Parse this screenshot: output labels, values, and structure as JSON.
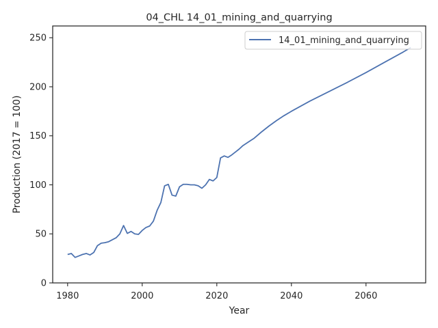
{
  "chart_data": {
    "type": "line",
    "title": "04_CHL 14_01_mining_and_quarrying",
    "xlabel": "Year",
    "ylabel": "Production (2017 = 100)",
    "xlim": [
      1976,
      2076
    ],
    "ylim": [
      0,
      262
    ],
    "xticks": [
      1980,
      2000,
      2020,
      2040,
      2060
    ],
    "yticks": [
      0,
      50,
      100,
      150,
      200,
      250
    ],
    "grid": false,
    "legend_position": "top-right",
    "series": [
      {
        "name": "14_01_mining_and_quarrying",
        "color": "#4c72b0",
        "x": [
          1980,
          1981,
          1982,
          1983,
          1984,
          1985,
          1986,
          1987,
          1988,
          1989,
          1990,
          1991,
          1992,
          1993,
          1994,
          1995,
          1996,
          1997,
          1998,
          1999,
          2000,
          2001,
          2002,
          2003,
          2004,
          2005,
          2006,
          2007,
          2008,
          2009,
          2010,
          2011,
          2012,
          2013,
          2014,
          2015,
          2016,
          2017,
          2018,
          2019,
          2020,
          2021,
          2022,
          2023,
          2024,
          2025,
          2026,
          2027,
          2028,
          2029,
          2030,
          2032,
          2034,
          2036,
          2038,
          2040,
          2045,
          2050,
          2055,
          2060,
          2065,
          2070,
          2072
        ],
        "y": [
          29,
          30,
          26,
          27.5,
          29,
          30,
          28.5,
          31,
          38,
          40.5,
          41,
          42,
          44,
          46,
          50,
          58.5,
          50.5,
          52.5,
          50,
          49.5,
          53.5,
          56.5,
          58,
          63,
          74,
          82,
          99,
          100.5,
          89.5,
          88.5,
          98,
          100.5,
          100.5,
          100,
          100,
          99,
          96.5,
          100,
          105.5,
          104,
          107.5,
          127.5,
          129.5,
          128,
          130.5,
          133.5,
          136.5,
          140,
          142.5,
          145,
          147.5,
          154,
          160,
          165.5,
          170.5,
          175,
          185.5,
          195,
          204.5,
          214.5,
          225,
          235.5,
          240
        ]
      }
    ]
  }
}
